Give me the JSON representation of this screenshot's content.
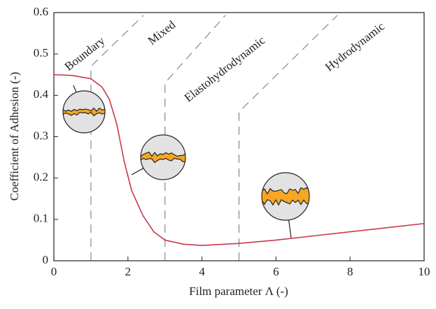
{
  "chart_data": {
    "type": "line",
    "x_label": "Film parameter Λ (-)",
    "y_label": "Coefficient of Adhesion (-)",
    "xlim": [
      0,
      10
    ],
    "xticks": [
      0,
      2,
      4,
      6,
      8,
      10
    ],
    "ylim": [
      0,
      0.6
    ],
    "yticks": [
      0,
      0.1,
      0.2,
      0.3,
      0.4,
      0.5,
      0.6
    ],
    "series": [
      {
        "name": "Coefficient of Adhesion",
        "color": "#c8374a",
        "x": [
          0,
          0.5,
          1,
          1.3,
          1.5,
          1.7,
          1.9,
          2.1,
          2.4,
          2.7,
          3,
          3.5,
          4,
          5,
          6,
          7,
          8,
          9,
          10
        ],
        "values": [
          0.45,
          0.448,
          0.44,
          0.42,
          0.39,
          0.33,
          0.24,
          0.17,
          0.11,
          0.07,
          0.05,
          0.04,
          0.037,
          0.042,
          0.05,
          0.06,
          0.07,
          0.08,
          0.09
        ]
      }
    ],
    "regimes": [
      "Boundary",
      "Mixed",
      "Elastohydrodynamic",
      "Hydrodynamic"
    ],
    "regime_dividers": [
      1,
      3,
      5
    ]
  }
}
